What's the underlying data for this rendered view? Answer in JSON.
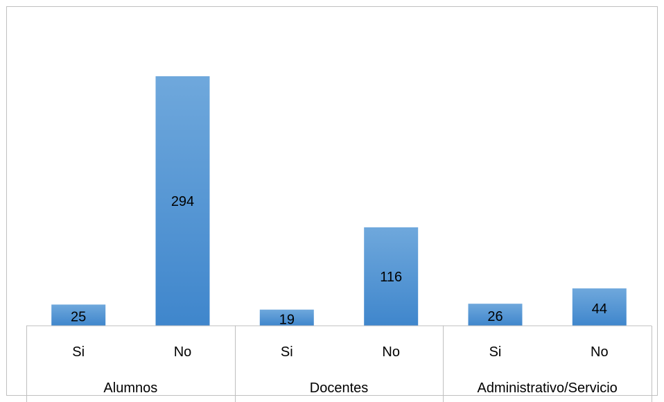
{
  "chart_data": {
    "type": "bar",
    "title": "",
    "xlabel": "",
    "ylabel": "",
    "groups": [
      {
        "label": "Alumnos",
        "categories": [
          "Si",
          "No"
        ],
        "values": [
          25,
          294
        ]
      },
      {
        "label": "Docentes",
        "categories": [
          "Si",
          "No"
        ],
        "values": [
          19,
          116
        ]
      },
      {
        "label": "Administrativo/Servicio",
        "categories": [
          "Si",
          "No"
        ],
        "values": [
          26,
          44
        ]
      }
    ],
    "ylim": [
      0,
      300
    ],
    "grid": false,
    "legend": "none",
    "bar_color": "#5b9bd5",
    "bar_color_light": "#6fa8dc",
    "bar_color_dark": "#3f86cc"
  }
}
